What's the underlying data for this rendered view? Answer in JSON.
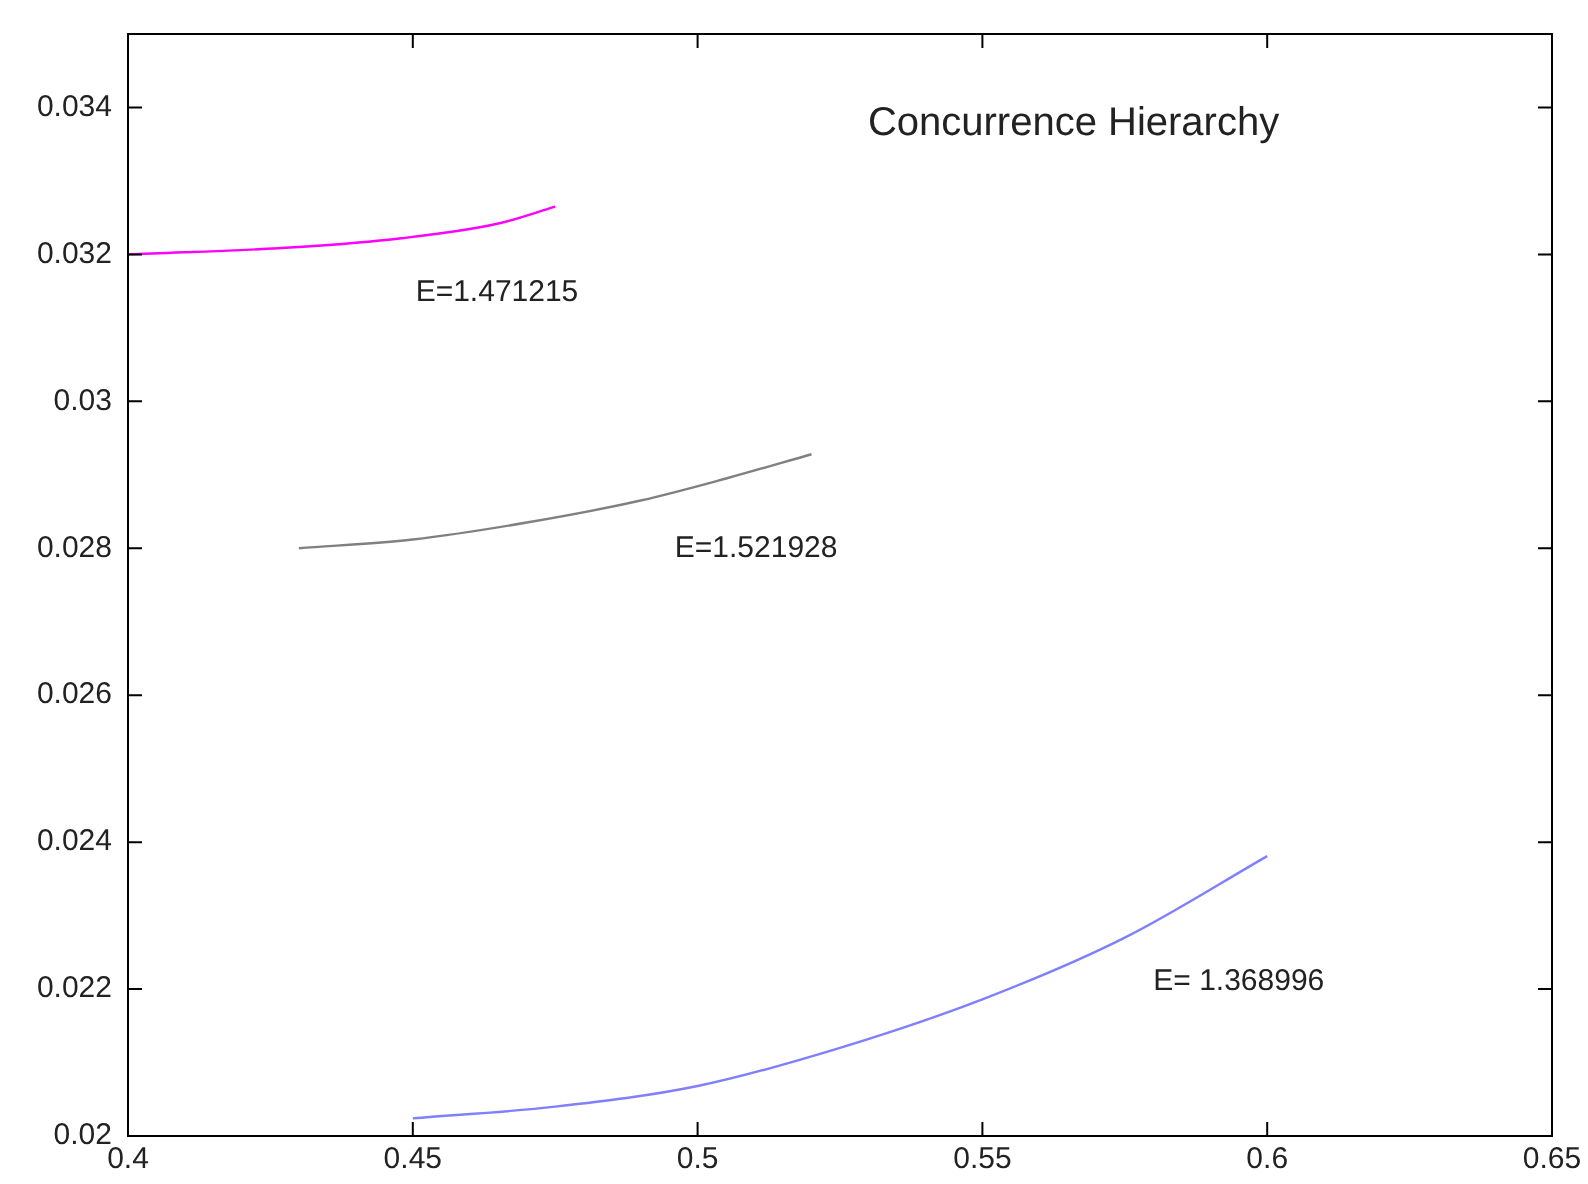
{
  "chart_data": {
    "type": "line",
    "title": "Concurrence Hierarchy",
    "xlim": [
      0.4,
      0.65
    ],
    "xticks": [
      0.4,
      0.45,
      0.5,
      0.55,
      0.6,
      0.65
    ],
    "ylim": [
      0.02,
      0.035
    ],
    "yticks": [
      0.02,
      0.022,
      0.024,
      0.026,
      0.028,
      0.03,
      0.032,
      0.034
    ],
    "grid": false,
    "legend": false,
    "marker": "none",
    "line_style": "solid",
    "series": [
      {
        "color": "#ff00ff",
        "x": [
          0.4,
          0.43,
          0.448,
          0.465,
          0.475
        ],
        "values": [
          0.032,
          0.0321,
          0.03222,
          0.03242,
          0.03265
        ]
      },
      {
        "color": "#808080",
        "x": [
          0.43,
          0.45,
          0.47,
          0.49,
          0.505,
          0.52
        ],
        "values": [
          0.028,
          0.02812,
          0.02835,
          0.02865,
          0.02895,
          0.02928
        ]
      },
      {
        "color": "#7f7fff",
        "x": [
          0.45,
          0.475,
          0.5,
          0.525,
          0.55,
          0.575,
          0.6
        ],
        "values": [
          0.02024,
          0.0204,
          0.02068,
          0.0212,
          0.02186,
          0.0227,
          0.02381
        ]
      }
    ],
    "annotations": [
      "E=1.471215",
      "E=1.521928",
      "E= 1.368996"
    ]
  }
}
